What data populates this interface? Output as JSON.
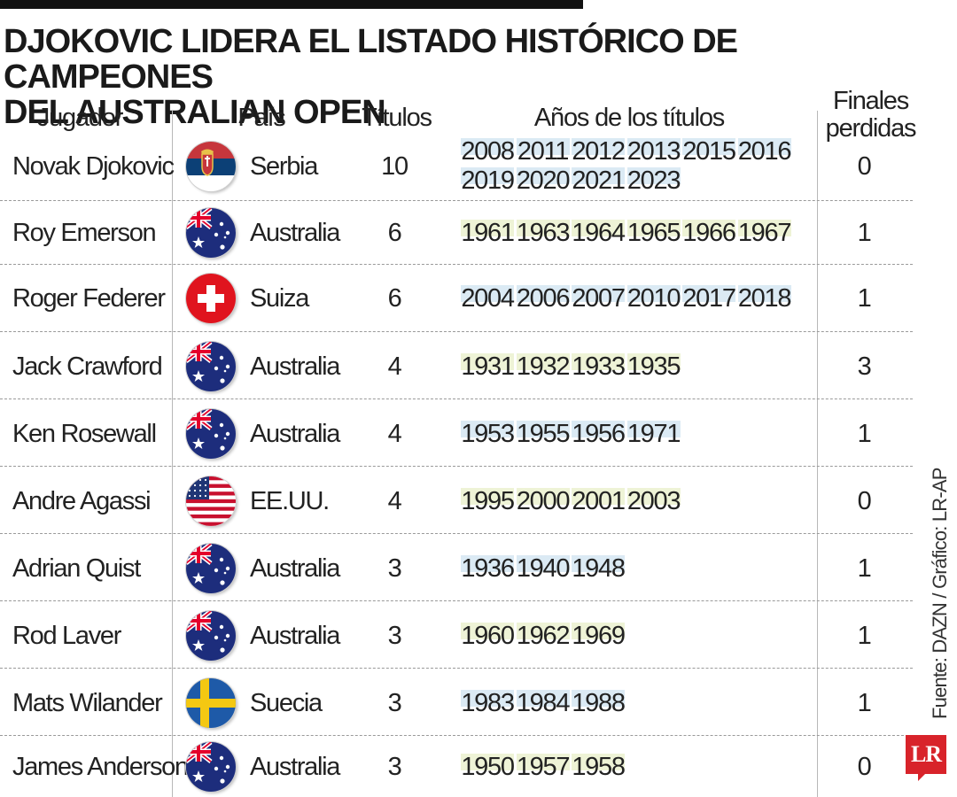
{
  "title": {
    "line1": "DJOKOVIC LIDERA EL LISTADO HISTÓRICO DE CAMPEONES",
    "line2": "DEL AUSTRALIAN OPEN"
  },
  "headers": {
    "player": "Jugador",
    "country": "País",
    "titles": "Títulos",
    "years": "Años de los títulos",
    "lost_line1": "Finales",
    "lost_line2": "perdidas"
  },
  "rows": [
    {
      "player": "Novak Djokovic",
      "flag": "serbia-flag",
      "country": "Serbia",
      "titles": "10",
      "years": [
        "2008",
        "2011",
        "2012",
        "2013",
        "2015",
        "2016",
        "2019",
        "2020",
        "2021",
        "2023"
      ],
      "shade": "blue",
      "lost": "0"
    },
    {
      "player": "Roy Emerson",
      "flag": "australia-flag",
      "country": "Australia",
      "titles": "6",
      "years": [
        "1961",
        "1963",
        "1964",
        "1965",
        "1966",
        "1967"
      ],
      "shade": "green",
      "lost": "1"
    },
    {
      "player": "Roger Federer",
      "flag": "switzerland-flag",
      "country": "Suiza",
      "titles": "6",
      "years": [
        "2004",
        "2006",
        "2007",
        "2010",
        "2017",
        "2018"
      ],
      "shade": "blue",
      "lost": "1"
    },
    {
      "player": "Jack Crawford",
      "flag": "australia-flag",
      "country": "Australia",
      "titles": "4",
      "years": [
        "1931",
        "1932",
        "1933",
        "1935"
      ],
      "shade": "green",
      "lost": "3"
    },
    {
      "player": "Ken Rosewall",
      "flag": "australia-flag",
      "country": "Australia",
      "titles": "4",
      "years": [
        "1953",
        "1955",
        "1956",
        "1971"
      ],
      "shade": "blue",
      "lost": "1"
    },
    {
      "player": "Andre Agassi",
      "flag": "usa-flag",
      "country": "EE.UU.",
      "titles": "4",
      "years": [
        "1995",
        "2000",
        "2001",
        "2003"
      ],
      "shade": "green",
      "lost": "0"
    },
    {
      "player": "Adrian Quist",
      "flag": "australia-flag",
      "country": "Australia",
      "titles": "3",
      "years": [
        "1936",
        "1940",
        "1948"
      ],
      "shade": "blue",
      "lost": "1"
    },
    {
      "player": "Rod Laver",
      "flag": "australia-flag",
      "country": "Australia",
      "titles": "3",
      "years": [
        "1960",
        "1962",
        "1969"
      ],
      "shade": "green",
      "lost": "1"
    },
    {
      "player": "Mats Wilander",
      "flag": "sweden-flag",
      "country": "Suecia",
      "titles": "3",
      "years": [
        "1983",
        "1984",
        "1988"
      ],
      "shade": "blue",
      "lost": "1"
    },
    {
      "player": "James Anderson",
      "flag": "australia-flag",
      "country": "Australia",
      "titles": "3",
      "years": [
        "1950",
        "1957",
        "1958"
      ],
      "shade": "green",
      "lost": "0"
    }
  ],
  "source": "Fuente: DAZN / Gráfico: LR-AP",
  "logo": "LR",
  "colors": {
    "year_blue": "#dbeaf4",
    "year_green": "#eef3d6",
    "logo_red": "#d8232a"
  }
}
